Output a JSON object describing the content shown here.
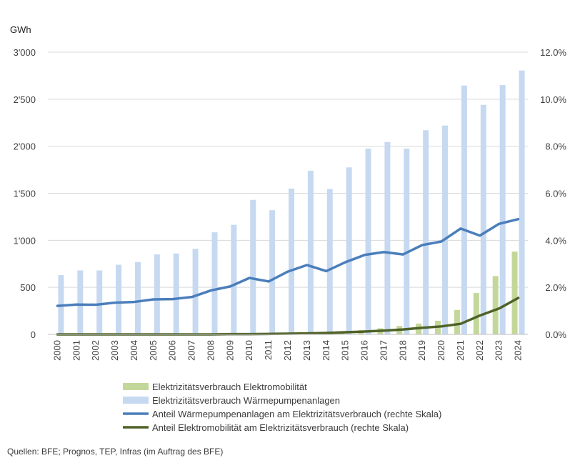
{
  "chart_data": {
    "type": "bar",
    "ylabel_left": "GWh",
    "categories": [
      "2000",
      "2001",
      "2002",
      "2003",
      "2004",
      "2005",
      "2006",
      "2007",
      "2008",
      "2009",
      "2010",
      "2011",
      "2012",
      "2013",
      "2014",
      "2015",
      "2016",
      "2017",
      "2018",
      "2019",
      "2020",
      "2021",
      "2022",
      "2023",
      "2024"
    ],
    "left_axis": {
      "ylim": [
        0,
        3000
      ],
      "ticks": [
        0,
        500,
        1000,
        1500,
        2000,
        2500,
        3000
      ],
      "tick_labels": [
        "0",
        "500",
        "1'000",
        "1'500",
        "2'000",
        "2'500",
        "3'000"
      ]
    },
    "right_axis": {
      "ylim": [
        0,
        12
      ],
      "ticks": [
        0,
        2,
        4,
        6,
        8,
        10,
        12
      ],
      "tick_labels": [
        "0.0%",
        "2.0%",
        "4.0%",
        "6.0%",
        "8.0%",
        "10.0%",
        "12.0%"
      ]
    },
    "gridlines": true,
    "series": [
      {
        "name": "Elektrizitätsverbrauch Elektromobilität",
        "type": "bar",
        "axis": "left",
        "color": "#c4d79b",
        "values": [
          0,
          0,
          0,
          0,
          0,
          0,
          0,
          0,
          0,
          2,
          3,
          5,
          8,
          12,
          18,
          25,
          45,
          65,
          90,
          115,
          145,
          260,
          440,
          620,
          880
        ]
      },
      {
        "name": "Elektrizitätsverbrauch Wärmepumpenanlagen",
        "type": "bar",
        "axis": "left",
        "color": "#c6d9f1",
        "values": [
          630,
          680,
          680,
          740,
          770,
          850,
          860,
          910,
          1085,
          1165,
          1430,
          1320,
          1550,
          1740,
          1545,
          1775,
          1975,
          2045,
          1975,
          2170,
          2220,
          2645,
          2440,
          2650,
          2805
        ]
      },
      {
        "name": "Anteil Wärmepumpenanlagen am Elektrizitätsverbrauch (rechte Skala)",
        "type": "line",
        "axis": "right",
        "color": "#4a7ebb",
        "values": [
          1.21,
          1.27,
          1.26,
          1.35,
          1.38,
          1.49,
          1.5,
          1.59,
          1.87,
          2.04,
          2.4,
          2.25,
          2.67,
          2.95,
          2.69,
          3.07,
          3.38,
          3.5,
          3.4,
          3.8,
          3.95,
          4.5,
          4.2,
          4.7,
          4.9
        ]
      },
      {
        "name": "Anteil Elektromobilität am Elektrizitätsverbrauch (rechte Skala)",
        "type": "line",
        "axis": "right",
        "color": "#4f6228",
        "values": [
          0,
          0,
          0,
          0,
          0,
          0,
          0,
          0,
          0,
          0.01,
          0.01,
          0.02,
          0.03,
          0.04,
          0.06,
          0.09,
          0.12,
          0.16,
          0.21,
          0.28,
          0.34,
          0.45,
          0.8,
          1.1,
          1.55
        ]
      }
    ],
    "legend": {
      "placement": "bottom",
      "labels": [
        "Elektrizitätsverbrauch Elektromobilität",
        "Elektrizitätsverbrauch Wärmepumpenanlagen",
        "Anteil Wärmepumpenanlagen am Elektrizitätsverbrauch (rechte Skala)",
        "Anteil Elektromobilität am Elektrizitätsverbrauch (rechte Skala)"
      ]
    },
    "source": "Quellen: BFE; Prognos, TEP, Infras (im Auftrag des BFE)"
  }
}
